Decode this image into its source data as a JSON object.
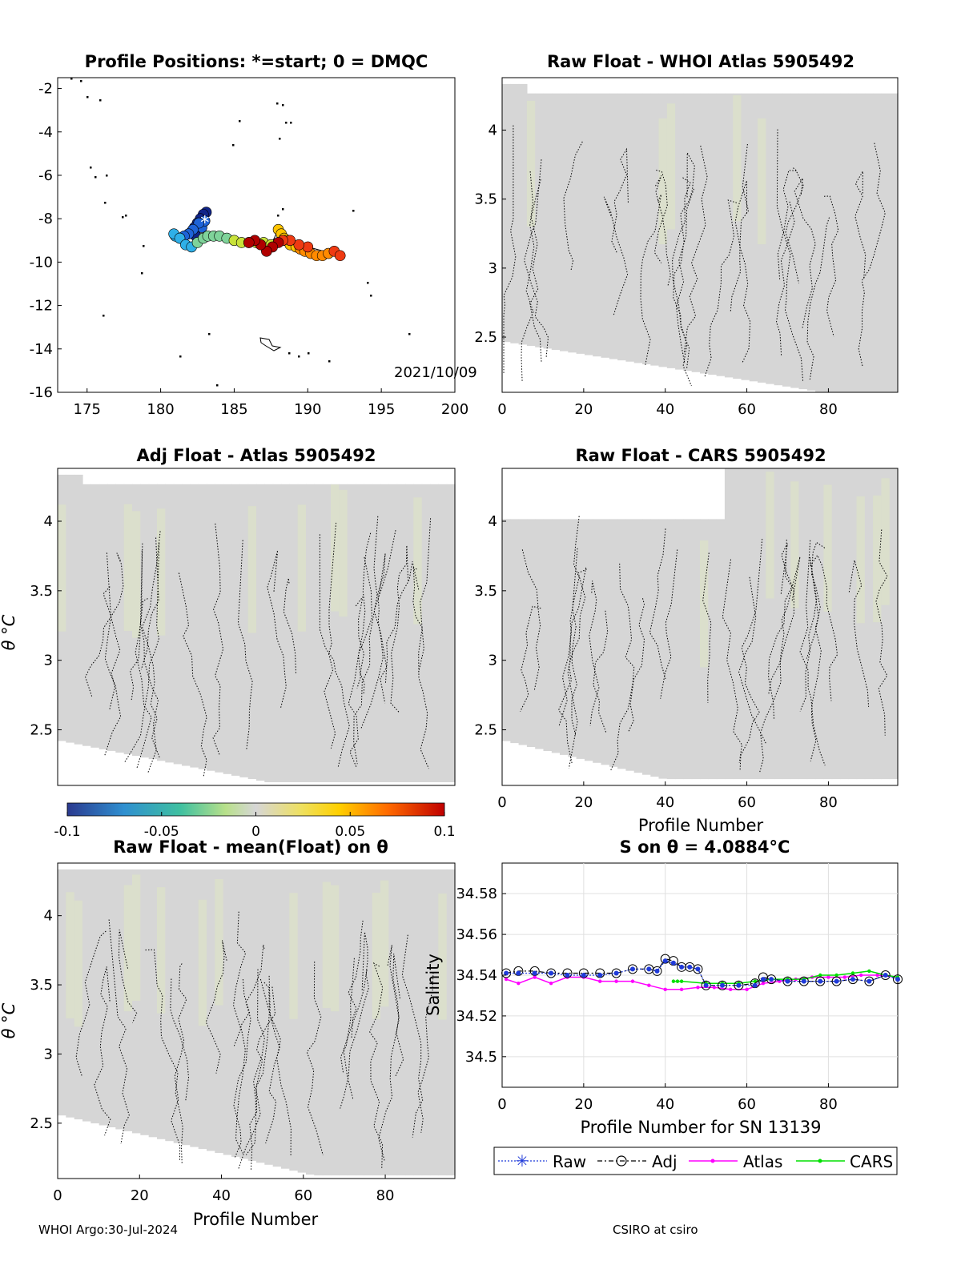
{
  "colors": {
    "field": "#d6d6d6",
    "raw": "#1f3ad9",
    "atlas": "#ff00ff",
    "cars": "#00e000",
    "traj": [
      "#10248a",
      "#1e63d8",
      "#2fb0e8",
      "#7fd39a",
      "#c8e23a",
      "#ffc400",
      "#ff8a00",
      "#ef3a12",
      "#b00000"
    ]
  },
  "panels": {
    "map": {
      "title": "Profile Positions: *=start; 0 = DMQC",
      "date_label": "2021/10/09",
      "xticks": [
        "175",
        "180",
        "185",
        "190",
        "195",
        "200"
      ],
      "yticks": [
        "-2",
        "-4",
        "-6",
        "-8",
        "-10",
        "-12",
        "-14",
        "-16"
      ]
    },
    "whoi": {
      "title": "Raw Float - WHOI Atlas  5905492",
      "xticks": [
        "0",
        "20",
        "40",
        "60",
        "80"
      ],
      "yticks": [
        "4",
        "3.5",
        "3",
        "2.5"
      ]
    },
    "adj": {
      "title": "Adj Float - Atlas  5905492",
      "ylabel": "θ °C",
      "yticks": [
        "4",
        "3.5",
        "3",
        "2.5"
      ]
    },
    "cars": {
      "title": "Raw Float - CARS  5905492",
      "xlabel": "Profile Number",
      "xticks": [
        "0",
        "20",
        "40",
        "60",
        "80"
      ],
      "yticks": [
        "4",
        "3.5",
        "3",
        "2.5"
      ]
    },
    "colorbar": {
      "ticks": [
        "-0.1",
        "-0.05",
        "0",
        "0.05",
        "0.1"
      ]
    },
    "mean": {
      "title": "Raw Float - mean(Float) on θ",
      "xlabel": "Profile Number",
      "ylabel": "θ °C",
      "xticks": [
        "0",
        "20",
        "40",
        "60",
        "80"
      ],
      "yticks": [
        "4",
        "3.5",
        "3",
        "2.5"
      ]
    },
    "sal": {
      "title": "S on θ = 4.0884°C",
      "xlabel": "Profile Number for SN 13139",
      "ylabel": "Salinity",
      "xticks": [
        "0",
        "20",
        "40",
        "60",
        "80"
      ],
      "yticks": [
        "34.58",
        "34.56",
        "34.54",
        "34.52",
        "34.5"
      ]
    }
  },
  "legend": [
    "Raw",
    "Adj",
    "Atlas",
    "CARS"
  ],
  "footer": {
    "left": "WHOI Argo:30-Jul-2024",
    "right": "CSIRO at csiro"
  },
  "chart_data": [
    {
      "type": "scatter",
      "title": "Profile Positions: *=start; 0 = DMQC",
      "xlim": [
        173,
        200
      ],
      "ylim": [
        -16,
        -1.5
      ],
      "annotations": [
        "2021/10/09"
      ],
      "start": [
        183,
        -8.05
      ],
      "lon": [
        183.1,
        182.9,
        182.7,
        182.5,
        182.3,
        182.1,
        182.4,
        182.8,
        183.0,
        182.6,
        182.2,
        181.9,
        181.6,
        181.3,
        181.0,
        180.9,
        181.3,
        181.7,
        182.1,
        182.5,
        182.9,
        183.2,
        183.6,
        184.0,
        184.5,
        185.0,
        185.5,
        186.0,
        186.5,
        187.0,
        187.5,
        188.0,
        188.2,
        188.4,
        188.5,
        188.8,
        189.2,
        189.5,
        189.8,
        190.2,
        190.6,
        191.0,
        191.4,
        191.8,
        192.2,
        190.0,
        189.4,
        188.8,
        188.3,
        188.0,
        187.6,
        187.2,
        186.8,
        186.4,
        186.0
      ],
      "lat": [
        -7.7,
        -7.8,
        -8.0,
        -8.2,
        -8.4,
        -8.6,
        -8.8,
        -8.4,
        -8.1,
        -8.2,
        -8.5,
        -8.7,
        -8.8,
        -8.9,
        -8.8,
        -8.7,
        -8.9,
        -9.2,
        -9.3,
        -9.1,
        -8.9,
        -8.8,
        -8.8,
        -8.8,
        -8.9,
        -9.0,
        -9.1,
        -9.1,
        -9.1,
        -9.1,
        -9.2,
        -8.5,
        -8.7,
        -8.9,
        -9.0,
        -9.2,
        -9.3,
        -9.4,
        -9.5,
        -9.6,
        -9.7,
        -9.7,
        -9.6,
        -9.5,
        -9.7,
        -9.3,
        -9.2,
        -9.0,
        -9.0,
        -9.1,
        -9.3,
        -9.5,
        -9.2,
        -9.0,
        -9.1
      ]
    },
    {
      "type": "line",
      "title": "S on θ = 4.0884°C",
      "xlabel": "Profile Number for SN 13139",
      "ylabel": "Salinity",
      "xlim": [
        0,
        97
      ],
      "ylim": [
        34.485,
        34.595
      ],
      "series": [
        {
          "name": "Raw",
          "x": [
            1,
            4,
            8,
            12,
            16,
            20,
            24,
            28,
            32,
            36,
            38,
            40,
            42,
            44,
            46,
            48,
            50,
            54,
            58,
            62,
            64,
            66,
            70,
            74,
            78,
            82,
            86,
            90,
            94,
            97
          ],
          "values": [
            34.541,
            34.541,
            34.541,
            34.541,
            34.54,
            34.54,
            34.54,
            34.541,
            34.543,
            34.543,
            34.542,
            34.547,
            34.546,
            34.544,
            34.544,
            34.543,
            34.535,
            34.535,
            34.535,
            34.535,
            34.538,
            34.538,
            34.537,
            34.537,
            34.537,
            34.537,
            34.538,
            34.537,
            34.54,
            34.538
          ]
        },
        {
          "name": "Adj",
          "x": [
            1,
            4,
            8,
            12,
            16,
            20,
            24,
            28,
            32,
            36,
            38,
            40,
            42,
            44,
            46,
            48,
            50,
            54,
            58,
            62,
            64,
            66,
            70,
            74,
            78,
            82,
            86,
            90,
            94,
            97
          ],
          "values": [
            34.541,
            34.542,
            34.542,
            34.541,
            34.541,
            34.541,
            34.541,
            34.541,
            34.543,
            34.543,
            34.542,
            34.548,
            34.547,
            34.544,
            34.544,
            34.543,
            34.535,
            34.535,
            34.535,
            34.536,
            34.539,
            34.538,
            34.537,
            34.537,
            34.537,
            34.537,
            34.538,
            34.537,
            34.54,
            34.538
          ]
        },
        {
          "name": "Atlas",
          "x": [
            1,
            4,
            8,
            12,
            16,
            20,
            24,
            28,
            32,
            36,
            40,
            44,
            48,
            52,
            56,
            60,
            64,
            68,
            72,
            76,
            80,
            84,
            88,
            92,
            97
          ],
          "values": [
            34.538,
            34.536,
            34.539,
            34.536,
            34.539,
            34.539,
            34.537,
            34.537,
            34.537,
            34.535,
            34.533,
            34.533,
            34.534,
            34.534,
            34.533,
            34.533,
            34.536,
            34.537,
            34.538,
            34.539,
            34.539,
            34.539,
            34.54,
            34.54,
            34.539
          ]
        },
        {
          "name": "CARS",
          "x": [
            42,
            43,
            44,
            50,
            54,
            58,
            62,
            66,
            70,
            74,
            78,
            82,
            86,
            90,
            94,
            97
          ],
          "values": [
            34.537,
            34.537,
            34.537,
            34.536,
            34.536,
            34.536,
            34.537,
            34.538,
            34.538,
            34.538,
            34.54,
            34.54,
            34.541,
            34.542,
            34.54,
            34.539
          ]
        }
      ]
    }
  ]
}
